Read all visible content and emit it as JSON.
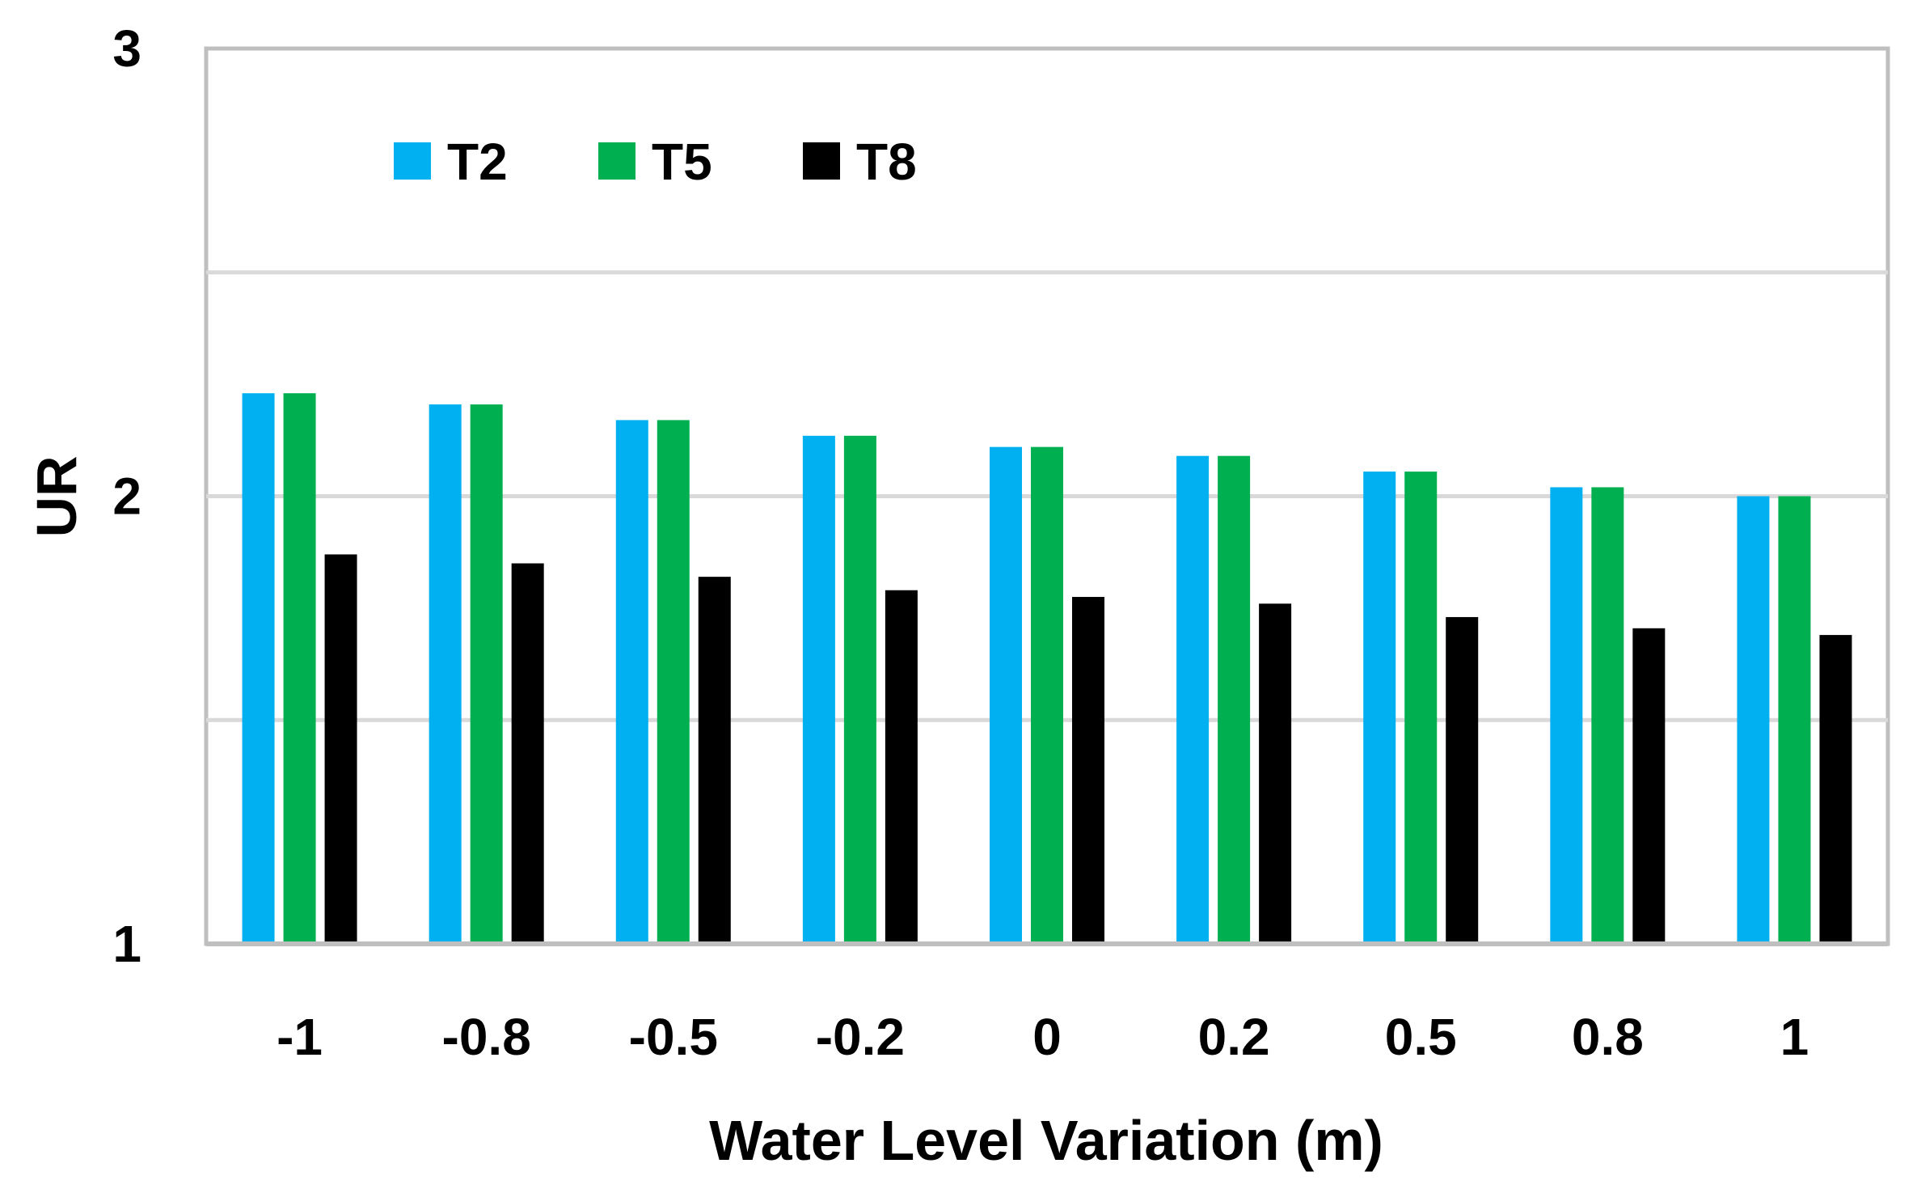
{
  "chart_data": {
    "type": "bar",
    "title": "",
    "xlabel": "Water Level Variation (m)",
    "ylabel": "UR",
    "ylim": [
      1,
      3
    ],
    "yticks": [
      "1",
      "2",
      "3"
    ],
    "grid": true,
    "legend_position": "top-left",
    "categories": [
      "-1",
      "-0.8",
      "-0.5",
      "-0.2",
      "0",
      "0.2",
      "0.5",
      "0.8",
      "1"
    ],
    "series": [
      {
        "name": "T2",
        "color": "#00B0F0",
        "values": [
          2.23,
          2.205,
          2.17,
          2.135,
          2.11,
          2.09,
          2.055,
          2.02,
          2.0
        ]
      },
      {
        "name": "T5",
        "color": "#00B050",
        "values": [
          2.23,
          2.205,
          2.17,
          2.135,
          2.11,
          2.09,
          2.055,
          2.02,
          2.0
        ]
      },
      {
        "name": "T8",
        "color": "#000000",
        "values": [
          1.87,
          1.85,
          1.82,
          1.79,
          1.775,
          1.76,
          1.73,
          1.705,
          1.69
        ]
      }
    ]
  }
}
